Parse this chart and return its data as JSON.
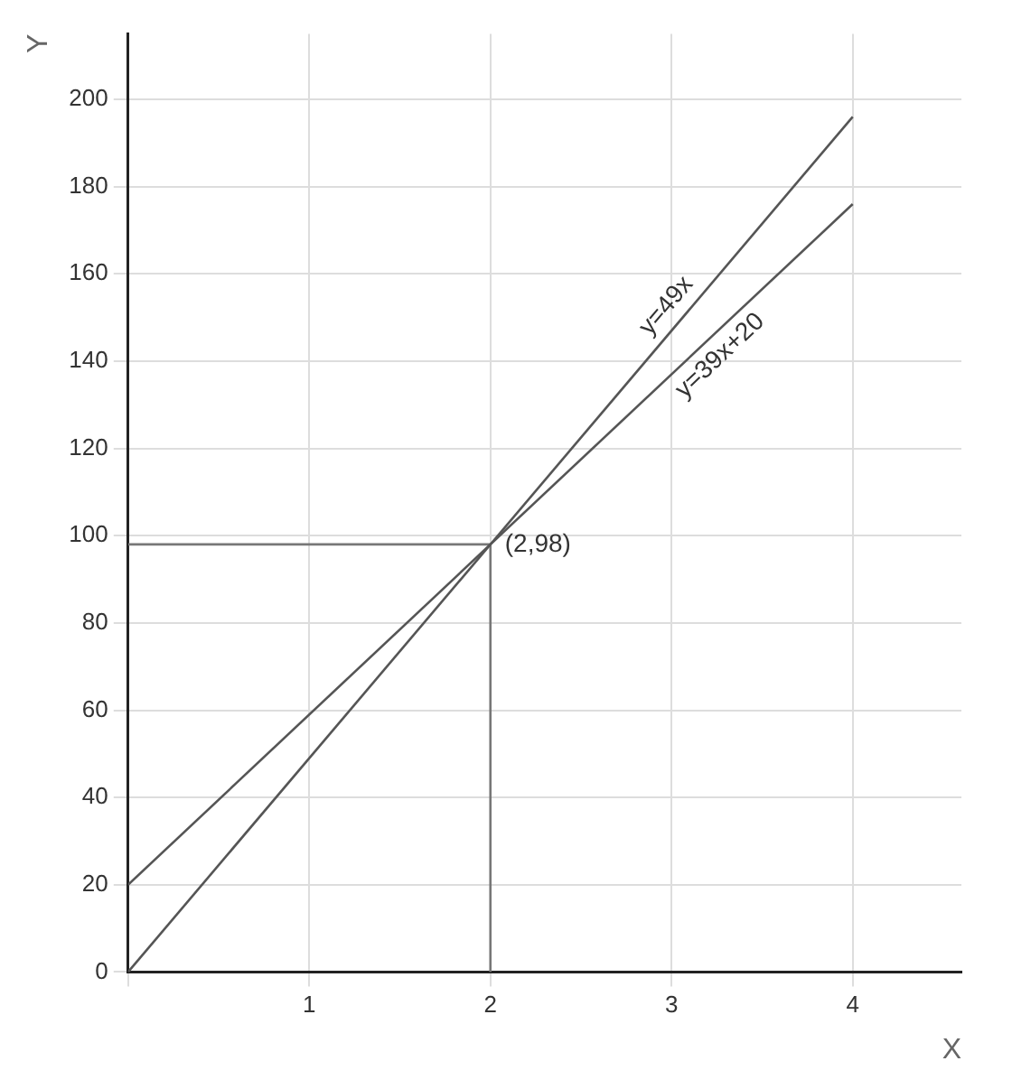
{
  "chart_data": {
    "type": "line",
    "xlabel": "X",
    "ylabel": "Y",
    "xlim": [
      0,
      4.6
    ],
    "ylim": [
      0,
      215
    ],
    "xticks": [
      {
        "value": 0,
        "label": null
      },
      1,
      2,
      3,
      4
    ],
    "yticks": [
      0,
      20,
      40,
      60,
      80,
      100,
      120,
      140,
      160,
      180,
      200
    ],
    "series": [
      {
        "name": "y=49x",
        "color": "#555555",
        "x": [
          0,
          4
        ],
        "values": [
          0,
          196
        ]
      },
      {
        "name": "y=39x+20",
        "color": "#555555",
        "x": [
          0,
          4
        ],
        "values": [
          20,
          176
        ]
      },
      {
        "color": "#777777",
        "x": [
          0,
          2
        ],
        "values": [
          98,
          98
        ]
      },
      {
        "color": "#777777",
        "x": [
          2,
          2
        ],
        "values": [
          0,
          98
        ]
      }
    ],
    "annotations": [
      {
        "text": "(2,98)",
        "x": 2,
        "y": 98
      }
    ],
    "grid": true,
    "legend": false,
    "marker": "none",
    "line_style": "solid"
  }
}
